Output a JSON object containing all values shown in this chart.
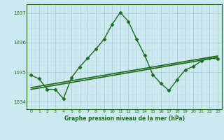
{
  "x": [
    0,
    1,
    2,
    3,
    4,
    5,
    6,
    7,
    8,
    9,
    10,
    11,
    12,
    13,
    14,
    15,
    16,
    17,
    18,
    19,
    20,
    21,
    22,
    23
  ],
  "y_main": [
    1034.9,
    1034.78,
    1034.42,
    1034.42,
    1034.1,
    1034.82,
    1035.18,
    1035.48,
    1035.78,
    1036.12,
    1036.62,
    1037.02,
    1036.72,
    1036.12,
    1035.58,
    1034.92,
    1034.62,
    1034.38,
    1034.75,
    1035.08,
    1035.2,
    1035.38,
    1035.48,
    1035.45
  ],
  "y_trend_a1": 1034.42,
  "y_trend_a2": 1035.5,
  "y_trend_b1": 1034.48,
  "y_trend_b2": 1035.55,
  "bg_color": "#cce9f0",
  "grid_color_major": "#b0ccd8",
  "grid_color_minor": "#c4dde8",
  "line_color": "#1a6b1a",
  "xlabel": "Graphe pression niveau de la mer (hPa)",
  "xlim": [
    -0.5,
    23.5
  ],
  "ylim": [
    1033.75,
    1037.3
  ],
  "yticks": [
    1034,
    1035,
    1036,
    1037
  ],
  "xticks": [
    0,
    1,
    2,
    3,
    4,
    5,
    6,
    7,
    8,
    9,
    10,
    11,
    12,
    13,
    14,
    15,
    16,
    17,
    18,
    19,
    20,
    21,
    22,
    23
  ]
}
